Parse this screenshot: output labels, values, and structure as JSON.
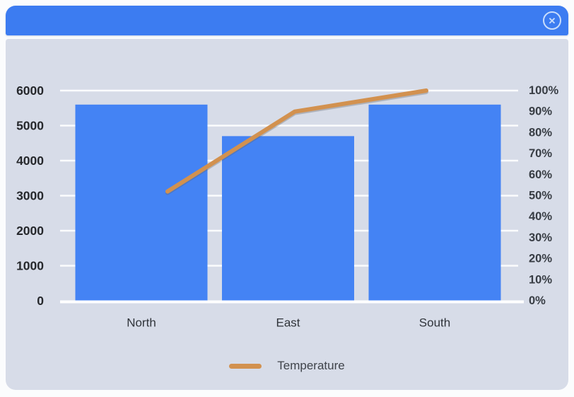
{
  "window": {
    "icons": {
      "close": "✕"
    }
  },
  "legend": {
    "items": [
      {
        "label": "Temperature",
        "color": "#d2914f",
        "shape": "line"
      }
    ]
  },
  "chart_data": {
    "type": "combo",
    "title": "",
    "categories": [
      "North",
      "East",
      "South"
    ],
    "series": [
      {
        "name": "",
        "type": "bar",
        "axis": "left",
        "color": "#4483f4",
        "values": [
          5600,
          4700,
          5600
        ]
      },
      {
        "name": "Temperature",
        "type": "line",
        "axis": "right",
        "color": "#d2914f",
        "values": [
          52,
          90,
          100
        ],
        "unit": "%"
      }
    ],
    "axes": {
      "left": {
        "min": 0,
        "max": 6000,
        "step": 1000,
        "tick_labels": [
          "0",
          "1000",
          "2000",
          "3000",
          "4000",
          "5000",
          "6000"
        ]
      },
      "right": {
        "min": 0,
        "max": 100,
        "step": 10,
        "tick_labels": [
          "0%",
          "10%",
          "20%",
          "30%",
          "40%",
          "50%",
          "60%",
          "70%",
          "80%",
          "90%",
          "100%"
        ]
      }
    },
    "grid": true,
    "gridline_color": "#ffffff",
    "legend_position": "bottom"
  }
}
